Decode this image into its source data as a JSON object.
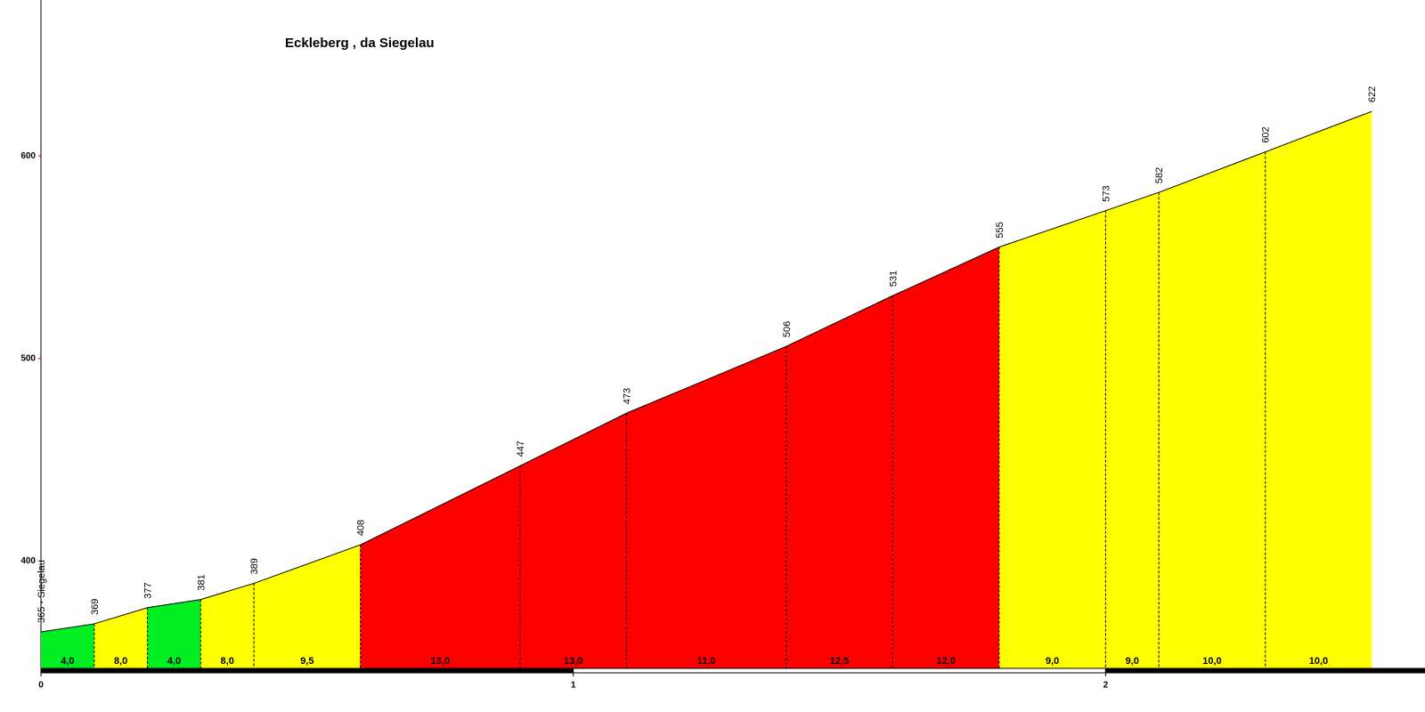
{
  "chart_data": {
    "type": "profile",
    "title": "Eckleberg , da Siegelau",
    "x": [
      0,
      0.1,
      0.2,
      0.3,
      0.4,
      0.6,
      0.9,
      1.1,
      1.4,
      1.6,
      1.8,
      2.0,
      2.1,
      2.3,
      2.5
    ],
    "values": [
      365,
      369,
      377,
      381,
      389,
      408,
      447,
      473,
      506,
      531,
      555,
      573,
      582,
      602,
      622
    ],
    "value_labels": [
      "365 - Siegelau",
      "369",
      "377",
      "381",
      "389",
      "408",
      "447",
      "473",
      "506",
      "531",
      "555",
      "573",
      "582",
      "602",
      "622"
    ],
    "gradients": [
      4.0,
      8.0,
      4.0,
      8.0,
      9.5,
      13.0,
      13.0,
      11.0,
      12.5,
      12.0,
      9.0,
      9.0,
      10.0,
      10.0
    ],
    "gradient_labels": [
      "4,0",
      "8,0",
      "4,0",
      "8,0",
      "9,5",
      "13,0",
      "13,0",
      "11,0",
      "12,5",
      "12,0",
      "9,0",
      "9,0",
      "10,0",
      "10,0"
    ],
    "segment_colors": [
      "#00ee22",
      "#ffff00",
      "#00ee22",
      "#ffff00",
      "#ffff00",
      "#ff0000",
      "#ff0000",
      "#ff0000",
      "#ff0000",
      "#ff0000",
      "#ffff00",
      "#ffff00",
      "#ffff00",
      "#ffff00"
    ],
    "xlim": [
      0,
      2.6
    ],
    "xticks": [
      0,
      1,
      2
    ],
    "ylim": [
      347,
      677
    ],
    "yticks": [
      400,
      500,
      600
    ]
  }
}
